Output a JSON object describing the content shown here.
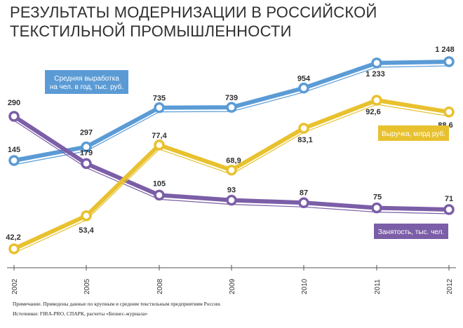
{
  "title": "РЕЗУЛЬТАТЫ МОДЕРНИЗАЦИИ В РОССИЙСКОЙ ТЕКСТИЛЬНОЙ ПРОМЫШЛЕННОСТИ",
  "notes": {
    "note": "Примечание. Приведены данные по крупным и средним текстильным предприятиям России.",
    "sources": "Источники: FIRA-PRO, СПАРК, расчеты «Бизнес-журнала»"
  },
  "chart_data": {
    "type": "line",
    "title": "РЕЗУЛЬТАТЫ МОДЕРНИЗАЦИИ В РОССИЙСКОЙ ТЕКСТИЛЬНОЙ ПРОМЫШЛЕННОСТИ",
    "categories": [
      "2002",
      "2005",
      "2008",
      "2009",
      "2010",
      "2011",
      "2012"
    ],
    "grid": false,
    "legend_placement": "labels on chart",
    "series": [
      {
        "name": "Средняя выработка на чел. в год, тыс. руб.",
        "legend_lines": [
          "Средняя выработка",
          "на чел. в год, тыс. руб."
        ],
        "color": "#5b9bd5",
        "values": [
          145,
          297,
          735,
          739,
          954,
          1233,
          1248
        ],
        "labels": [
          "145",
          "297",
          "735",
          "739",
          "954",
          "1 233",
          "1 248"
        ]
      },
      {
        "name": "Выручка, млрд руб.",
        "legend_lines": [
          "Выручка, млрд руб."
        ],
        "color": "#e8c12e",
        "values": [
          42.2,
          53.4,
          77.4,
          68.9,
          83.1,
          92.6,
          88.6
        ],
        "labels": [
          "42,2",
          "53,4",
          "77,4",
          "68,9",
          "83,1",
          "92,6",
          "88,6"
        ]
      },
      {
        "name": "Занятость, тыс. чел.",
        "legend_lines": [
          "Занятость, тыс. чел."
        ],
        "color": "#7b5ea7",
        "values": [
          290,
          179,
          105,
          93,
          87,
          75,
          71
        ],
        "labels": [
          "290",
          "179",
          "105",
          "93",
          "87",
          "75",
          "71"
        ]
      }
    ]
  }
}
